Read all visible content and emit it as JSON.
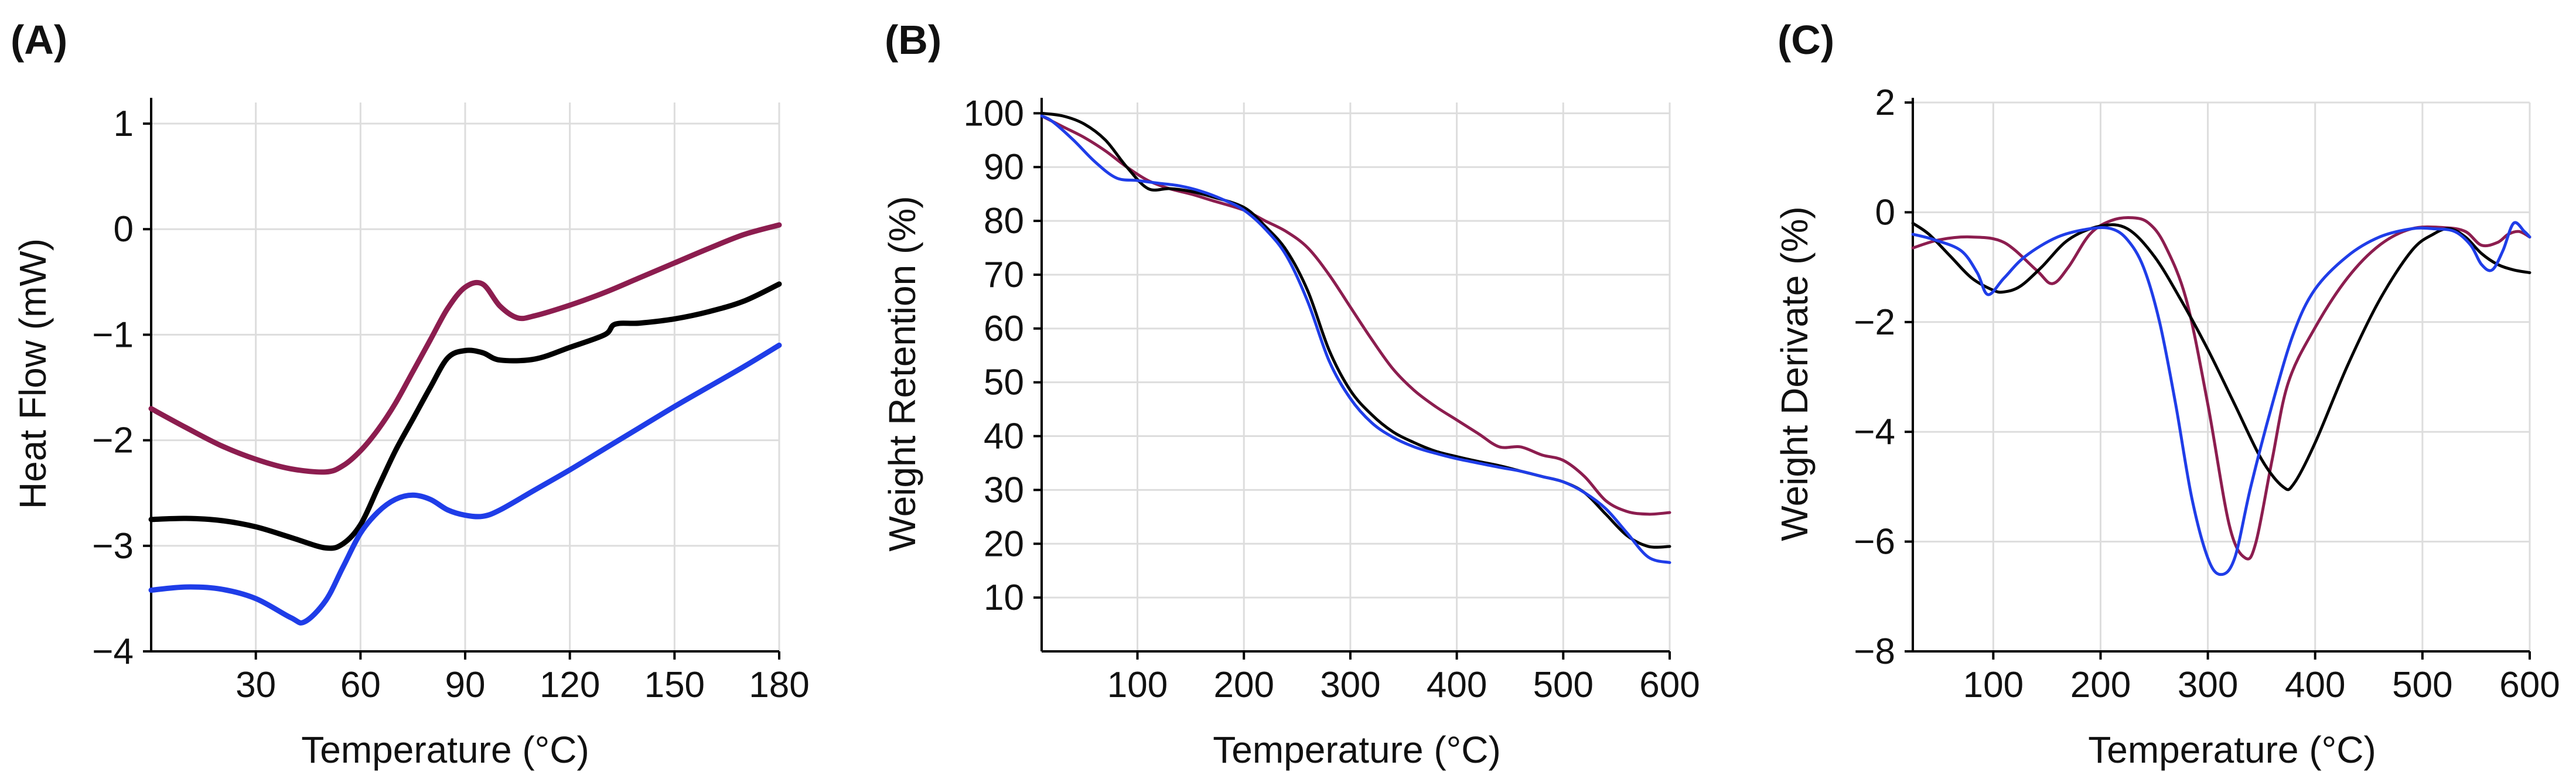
{
  "panels": [
    {
      "label": "(A)"
    },
    {
      "label": "(B)"
    },
    {
      "label": "(C)"
    }
  ],
  "chart_data": [
    {
      "type": "line",
      "panel": "(A)",
      "title": "",
      "xlabel": "Temperature (°C)",
      "ylabel": "Heat Flow (mW)",
      "xlim": [
        0,
        180
      ],
      "ylim": [
        -4,
        1.2
      ],
      "xticks": [
        30,
        60,
        90,
        120,
        150,
        180
      ],
      "yticks": [
        -4,
        -3,
        -2,
        -1,
        0,
        1
      ],
      "xtick_labels": [
        "30",
        "60",
        "90",
        "120",
        "150",
        "180"
      ],
      "ytick_labels": [
        "−4",
        "−3",
        "−2",
        "−1",
        "0",
        "1"
      ],
      "grid": true,
      "legend": "none",
      "series": [
        {
          "color": "#8c1d4f",
          "x": [
            0,
            10,
            20,
            30,
            40,
            50,
            55,
            60,
            65,
            70,
            75,
            80,
            85,
            90,
            95,
            100,
            105,
            110,
            120,
            130,
            140,
            150,
            160,
            170,
            180
          ],
          "y": [
            -1.7,
            -1.88,
            -2.05,
            -2.18,
            -2.27,
            -2.3,
            -2.24,
            -2.1,
            -1.9,
            -1.65,
            -1.35,
            -1.05,
            -0.75,
            -0.55,
            -0.52,
            -0.73,
            -0.84,
            -0.82,
            -0.72,
            -0.6,
            -0.46,
            -0.32,
            -0.18,
            -0.05,
            0.04
          ]
        },
        {
          "color": "#000000",
          "x": [
            0,
            10,
            20,
            30,
            40,
            50,
            55,
            60,
            65,
            70,
            75,
            80,
            85,
            90,
            95,
            100,
            110,
            120,
            130,
            133,
            140,
            150,
            160,
            170,
            180
          ],
          "y": [
            -2.75,
            -2.74,
            -2.76,
            -2.82,
            -2.92,
            -3.02,
            -2.98,
            -2.8,
            -2.45,
            -2.1,
            -1.8,
            -1.5,
            -1.22,
            -1.15,
            -1.17,
            -1.24,
            -1.23,
            -1.12,
            -1.0,
            -0.9,
            -0.89,
            -0.85,
            -0.78,
            -0.68,
            -0.52
          ]
        },
        {
          "color": "#1f3de8",
          "x": [
            0,
            10,
            20,
            30,
            40,
            44,
            50,
            55,
            60,
            65,
            70,
            75,
            80,
            85,
            90,
            95,
            100,
            110,
            120,
            130,
            140,
            150,
            160,
            170,
            180
          ],
          "y": [
            -3.42,
            -3.39,
            -3.41,
            -3.5,
            -3.68,
            -3.72,
            -3.52,
            -3.2,
            -2.88,
            -2.68,
            -2.56,
            -2.52,
            -2.56,
            -2.66,
            -2.71,
            -2.72,
            -2.66,
            -2.47,
            -2.28,
            -2.08,
            -1.88,
            -1.68,
            -1.49,
            -1.3,
            -1.1
          ]
        }
      ]
    },
    {
      "type": "line",
      "panel": "(B)",
      "title": "",
      "xlabel": "Temperature (°C)",
      "ylabel": "Weight Retention (%)",
      "xlim": [
        10,
        600
      ],
      "ylim": [
        0,
        102
      ],
      "xticks": [
        100,
        200,
        300,
        400,
        500,
        600
      ],
      "yticks": [
        10,
        20,
        30,
        40,
        50,
        60,
        70,
        80,
        90,
        100
      ],
      "xtick_labels": [
        "100",
        "200",
        "300",
        "400",
        "500",
        "600"
      ],
      "ytick_labels": [
        "10",
        "20",
        "30",
        "40",
        "50",
        "60",
        "70",
        "80",
        "90",
        "100"
      ],
      "grid": true,
      "legend": "none",
      "series": [
        {
          "color": "#8c1d4f",
          "x": [
            10,
            30,
            50,
            70,
            90,
            110,
            130,
            150,
            170,
            200,
            220,
            240,
            260,
            280,
            300,
            320,
            340,
            360,
            380,
            400,
            420,
            440,
            460,
            480,
            500,
            520,
            540,
            560,
            580,
            600
          ],
          "y": [
            99.5,
            97.5,
            95.5,
            93,
            90,
            87.5,
            86,
            85,
            83.8,
            82,
            80,
            78,
            75,
            70,
            64,
            58,
            52.5,
            48.5,
            45.5,
            43,
            40.5,
            38,
            38,
            36.5,
            35.5,
            32.5,
            28,
            26,
            25.5,
            25.8
          ]
        },
        {
          "color": "#000000",
          "x": [
            10,
            30,
            50,
            70,
            90,
            110,
            130,
            150,
            170,
            200,
            220,
            240,
            260,
            280,
            300,
            320,
            340,
            360,
            380,
            400,
            420,
            440,
            460,
            480,
            500,
            520,
            540,
            560,
            580,
            600
          ],
          "y": [
            100,
            99.5,
            98,
            95,
            90,
            86,
            86,
            85.5,
            84.5,
            82.5,
            79,
            74.5,
            67,
            56,
            48.5,
            44,
            40.8,
            38.8,
            37.2,
            36.2,
            35.3,
            34.5,
            33.5,
            32.5,
            31.5,
            29.5,
            25.5,
            21.5,
            19.5,
            19.5
          ]
        },
        {
          "color": "#1f3de8",
          "x": [
            10,
            20,
            40,
            60,
            80,
            100,
            120,
            140,
            160,
            180,
            200,
            220,
            240,
            260,
            280,
            300,
            320,
            340,
            360,
            380,
            400,
            420,
            440,
            460,
            480,
            500,
            520,
            540,
            560,
            580,
            600
          ],
          "y": [
            99.5,
            98.5,
            95,
            91,
            88,
            87.5,
            87,
            86.5,
            85.5,
            84,
            82,
            78.5,
            73.5,
            65,
            54,
            47,
            42.5,
            39.8,
            38,
            36.8,
            35.8,
            35,
            34.2,
            33.5,
            32.5,
            31.5,
            29.5,
            26.5,
            22,
            17.5,
            16.5
          ]
        }
      ]
    },
    {
      "type": "line",
      "panel": "(C)",
      "title": "",
      "xlabel": "Temperature (°C)",
      "ylabel": "Weight Derivate (%)",
      "xlim": [
        25,
        600
      ],
      "ylim": [
        -8,
        2
      ],
      "xticks": [
        100,
        200,
        300,
        400,
        500,
        600
      ],
      "yticks": [
        -8,
        -6,
        -4,
        -2,
        0,
        2
      ],
      "xtick_labels": [
        "100",
        "200",
        "300",
        "400",
        "500",
        "600"
      ],
      "ytick_labels": [
        "−8",
        "−6",
        "−4",
        "−2",
        "0",
        "2"
      ],
      "grid": true,
      "legend": "none",
      "series": [
        {
          "color": "#8c1d4f",
          "x": [
            25,
            50,
            80,
            110,
            140,
            155,
            170,
            190,
            210,
            230,
            245,
            260,
            280,
            300,
            320,
            335,
            345,
            360,
            375,
            400,
            430,
            460,
            490,
            520,
            540,
            555,
            570,
            580,
            590,
            600
          ],
          "y": [
            -0.65,
            -0.5,
            -0.45,
            -0.55,
            -1.05,
            -1.3,
            -1.0,
            -0.4,
            -0.15,
            -0.1,
            -0.2,
            -0.6,
            -1.6,
            -3.5,
            -5.7,
            -6.3,
            -6.0,
            -4.5,
            -3.1,
            -2.1,
            -1.2,
            -0.6,
            -0.3,
            -0.28,
            -0.35,
            -0.6,
            -0.55,
            -0.4,
            -0.35,
            -0.45
          ]
        },
        {
          "color": "#000000",
          "x": [
            25,
            40,
            60,
            80,
            100,
            110,
            125,
            145,
            170,
            200,
            225,
            250,
            275,
            300,
            325,
            350,
            370,
            380,
            400,
            430,
            460,
            490,
            510,
            525,
            540,
            555,
            570,
            585,
            600
          ],
          "y": [
            -0.2,
            -0.4,
            -0.8,
            -1.2,
            -1.42,
            -1.45,
            -1.35,
            -1.0,
            -0.5,
            -0.25,
            -0.3,
            -0.8,
            -1.6,
            -2.5,
            -3.5,
            -4.5,
            -5.0,
            -4.95,
            -4.2,
            -2.8,
            -1.6,
            -0.7,
            -0.4,
            -0.3,
            -0.45,
            -0.75,
            -0.95,
            -1.05,
            -1.1
          ]
        },
        {
          "color": "#1f3de8",
          "x": [
            25,
            45,
            70,
            85,
            95,
            110,
            130,
            160,
            190,
            210,
            225,
            240,
            255,
            270,
            285,
            300,
            312,
            325,
            340,
            360,
            380,
            400,
            430,
            460,
            490,
            510,
            530,
            545,
            555,
            565,
            575,
            585,
            595,
            600
          ],
          "y": [
            -0.4,
            -0.5,
            -0.7,
            -1.1,
            -1.5,
            -1.2,
            -0.8,
            -0.45,
            -0.3,
            -0.3,
            -0.5,
            -1.0,
            -2.0,
            -3.5,
            -5.2,
            -6.3,
            -6.6,
            -6.3,
            -5.0,
            -3.5,
            -2.2,
            -1.4,
            -0.8,
            -0.45,
            -0.3,
            -0.3,
            -0.35,
            -0.6,
            -0.95,
            -1.05,
            -0.7,
            -0.2,
            -0.35,
            -0.45
          ]
        }
      ]
    }
  ]
}
